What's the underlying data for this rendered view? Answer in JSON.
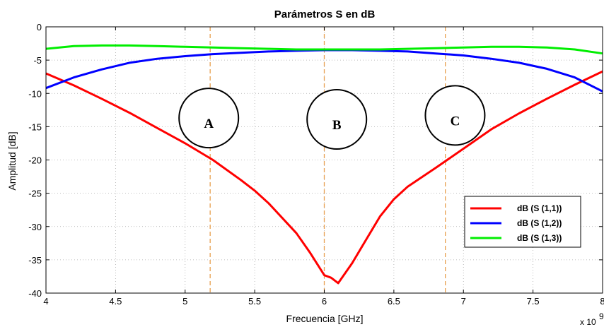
{
  "chart_data": {
    "type": "line",
    "title": "Parámetros S en dB",
    "xlabel": "Frecuencia [GHz]",
    "ylabel": "Amplitud [dB]",
    "x_multiplier": "x 10",
    "x_multiplier_exp": "9",
    "xlim": [
      4,
      8
    ],
    "ylim": [
      -40,
      0
    ],
    "x_ticks": [
      4,
      4.5,
      5,
      5.5,
      6,
      6.5,
      7,
      7.5,
      8
    ],
    "x_tick_labels": [
      "4",
      "4.5",
      "5",
      "5.5",
      "6",
      "6.5",
      "7",
      "7.5",
      "8"
    ],
    "y_ticks": [
      0,
      -5,
      -10,
      -15,
      -20,
      -25,
      -30,
      -35,
      -40
    ],
    "y_tick_labels": [
      "0",
      "-5",
      "-10",
      "-15",
      "-20",
      "-25",
      "-30",
      "-35",
      "-40"
    ],
    "grid": true,
    "legend_position": "bottom-right",
    "series": [
      {
        "name": "dB (S (1,1))",
        "color": "#ff0000",
        "x": [
          4.0,
          4.2,
          4.4,
          4.6,
          4.8,
          5.0,
          5.2,
          5.4,
          5.5,
          5.6,
          5.8,
          5.9,
          6.0,
          6.05,
          6.1,
          6.2,
          6.3,
          6.4,
          6.5,
          6.6,
          6.8,
          7.0,
          7.2,
          7.4,
          7.6,
          7.8,
          8.0
        ],
        "values": [
          -7.0,
          -8.8,
          -10.8,
          -12.9,
          -15.2,
          -17.5,
          -20.0,
          -23.0,
          -24.6,
          -26.5,
          -31.0,
          -34.0,
          -37.3,
          -37.7,
          -38.5,
          -35.5,
          -32.0,
          -28.5,
          -25.9,
          -24.0,
          -21.2,
          -18.3,
          -15.4,
          -13.0,
          -10.8,
          -8.7,
          -6.7
        ]
      },
      {
        "name": "dB (S (1,2))",
        "color": "#0000ff",
        "x": [
          4.0,
          4.2,
          4.4,
          4.6,
          4.8,
          5.0,
          5.2,
          5.4,
          5.6,
          5.8,
          6.0,
          6.2,
          6.4,
          6.6,
          6.8,
          7.0,
          7.2,
          7.4,
          7.6,
          7.8,
          8.0
        ],
        "values": [
          -9.2,
          -7.6,
          -6.4,
          -5.4,
          -4.8,
          -4.4,
          -4.1,
          -3.9,
          -3.7,
          -3.6,
          -3.5,
          -3.5,
          -3.6,
          -3.7,
          -4.0,
          -4.3,
          -4.8,
          -5.4,
          -6.3,
          -7.6,
          -9.7
        ]
      },
      {
        "name": "dB (S (1,3))",
        "color": "#00ee00",
        "x": [
          4.0,
          4.2,
          4.4,
          4.6,
          4.8,
          5.0,
          5.2,
          5.4,
          5.6,
          5.8,
          6.0,
          6.2,
          6.4,
          6.6,
          6.8,
          7.0,
          7.2,
          7.4,
          7.6,
          7.8,
          8.0
        ],
        "values": [
          -3.3,
          -2.9,
          -2.8,
          -2.8,
          -2.9,
          -3.0,
          -3.1,
          -3.2,
          -3.3,
          -3.4,
          -3.4,
          -3.4,
          -3.4,
          -3.3,
          -3.2,
          -3.1,
          -3.0,
          -3.0,
          -3.1,
          -3.4,
          -4.0
        ]
      }
    ],
    "vertical_markers": {
      "color": "#e8a050",
      "x": [
        5.18,
        6.0,
        6.87
      ]
    },
    "region_labels": [
      {
        "label": "A",
        "x": 5.17,
        "y": -13.7
      },
      {
        "label": "B",
        "x": 6.09,
        "y": -13.9
      },
      {
        "label": "C",
        "x": 6.94,
        "y": -13.3
      }
    ]
  }
}
